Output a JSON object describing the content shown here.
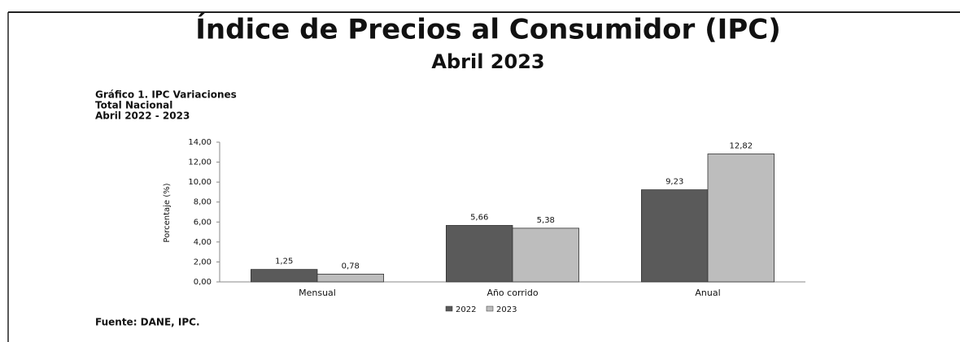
{
  "chart_data": {
    "type": "bar",
    "title": "Índice de Precios al Consumidor (IPC)",
    "subtitle": "Abril 2023",
    "chart_title": [
      "Gráfico 1. IPC Variaciones",
      "Total Nacional",
      "Abril 2022 - 2023"
    ],
    "ylabel": "Porcentaje (%)",
    "categories": [
      "Mensual",
      "Año corrido",
      "Anual"
    ],
    "series": [
      {
        "name": "2022",
        "color": "#5a5a5a",
        "values": [
          1.25,
          5.66,
          9.23
        ],
        "value_labels": [
          "1,25",
          "5,66",
          "9,23"
        ]
      },
      {
        "name": "2023",
        "color": "#bdbdbd",
        "values": [
          0.78,
          5.38,
          12.82
        ],
        "value_labels": [
          "0,78",
          "5,38",
          "12,82"
        ]
      }
    ],
    "ylim": [
      0,
      14
    ],
    "yticks": [
      {
        "value": 0,
        "label": "0,00"
      },
      {
        "value": 2,
        "label": "2,00"
      },
      {
        "value": 4,
        "label": "4,00"
      },
      {
        "value": 6,
        "label": "6,00"
      },
      {
        "value": 8,
        "label": "8,00"
      },
      {
        "value": 10,
        "label": "10,00"
      },
      {
        "value": 12,
        "label": "12,00"
      },
      {
        "value": 14,
        "label": "14,00"
      }
    ],
    "legend": "bottom",
    "source": "Fuente: DANE, IPC."
  }
}
